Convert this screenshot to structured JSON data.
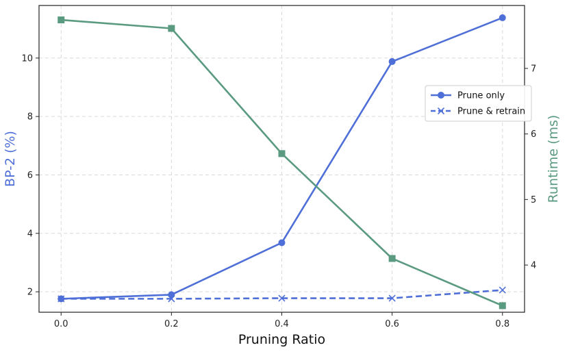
{
  "chart_data": {
    "type": "line",
    "title": "",
    "xlabel": "Pruning Ratio",
    "ylabel_left": "BP-2 (%)",
    "ylabel_right": "Runtime (ms)",
    "x": [
      0.0,
      0.2,
      0.4,
      0.6,
      0.8
    ],
    "x_tick_labels": [
      "0.0",
      "0.2",
      "0.4",
      "0.6",
      "0.8"
    ],
    "xlim": [
      -0.04,
      0.84
    ],
    "ylim_left": [
      1.3,
      11.8
    ],
    "yticks_left": [
      "2",
      "4",
      "6",
      "8",
      "10"
    ],
    "ylim_right": [
      3.28,
      7.96
    ],
    "yticks_right": [
      "4",
      "5",
      "6",
      "7"
    ],
    "grid": true,
    "legend_position": "center-right",
    "series": [
      {
        "name": "Prune only",
        "axis": "left",
        "style": "solid",
        "marker": "circle",
        "color": "#4F6FD8",
        "values": [
          1.76,
          1.9,
          3.68,
          9.88,
          11.38
        ]
      },
      {
        "name": "Prune & retrain",
        "axis": "left",
        "style": "dashed",
        "marker": "x",
        "color": "#4F6FD8",
        "values": [
          1.76,
          1.76,
          1.78,
          1.78,
          2.06
        ]
      },
      {
        "axis": "right",
        "style": "solid",
        "marker": "square",
        "color": "#5A9A80",
        "values": [
          7.74,
          7.61,
          5.7,
          4.1,
          3.38
        ]
      }
    ]
  }
}
